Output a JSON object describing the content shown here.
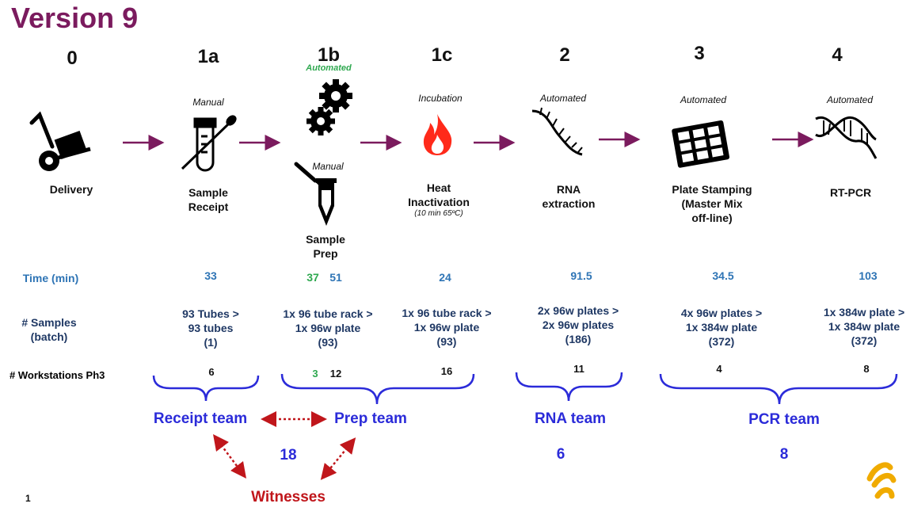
{
  "title": "Version 9",
  "steps": [
    {
      "num": "0",
      "mode": "",
      "stage": "Delivery",
      "icon": "hand-truck-icon"
    },
    {
      "num": "1a",
      "mode": "Manual",
      "stage": "Sample Receipt",
      "icon": "test-tube-swab-icon"
    },
    {
      "num": "1b",
      "mode": "Automated",
      "mode2": "Manual",
      "stage": "Sample Prep",
      "icon": "gears-icon",
      "icon2": "pipette-tube-icon"
    },
    {
      "num": "1c",
      "mode": "Incubation",
      "stage": "Heat Inactivation",
      "note": "(10 min 65ºC)",
      "icon": "flame-icon"
    },
    {
      "num": "2",
      "mode": "Automated",
      "stage": "RNA extraction",
      "icon": "rna-strand-icon"
    },
    {
      "num": "3",
      "mode": "Automated",
      "stage": "Plate Stamping (Master Mix off-line)",
      "icon": "well-plate-icon"
    },
    {
      "num": "4",
      "mode": "Automated",
      "stage": "RT-PCR",
      "icon": "dna-helix-icon"
    }
  ],
  "rows": {
    "time_label": "Time (min)",
    "samples_label": "# Samples (batch)",
    "workstations_label": "# Workstations Ph3"
  },
  "times": [
    "33",
    "37",
    "51",
    "24",
    "91.5",
    "34.5",
    "103"
  ],
  "samples": [
    {
      "l1": "93 Tubes >",
      "l2": "93 tubes",
      "l3": "(1)"
    },
    {
      "l1": "1x 96 tube rack >",
      "l2": "1x 96w plate",
      "l3": "(93)"
    },
    {
      "l1": "1x 96 tube rack >",
      "l2": "1x 96w plate",
      "l3": "(93)"
    },
    {
      "l1": "2x 96w plates >",
      "l2": "2x 96w plates",
      "l3": "(186)"
    },
    {
      "l1": "4x 96w plates >",
      "l2": "1x 384w plate",
      "l3": "(372)"
    },
    {
      "l1": "1x 384w plate >",
      "l2": "1x 384w plate",
      "l3": "(372)"
    }
  ],
  "workstations": [
    "6",
    "3",
    "12",
    "16",
    "11",
    "4",
    "8"
  ],
  "teams": {
    "receipt": "Receipt team",
    "prep": "Prep team",
    "rna": "RNA team",
    "pcr": "PCR team",
    "receipt_prep_count": "18",
    "rna_count": "6",
    "pcr_count": "8",
    "witnesses": "Witnesses"
  },
  "page_number": "1",
  "colors": {
    "title": "#7b1b5e",
    "arrow": "#7b1b5e",
    "team": "#2b2bd9",
    "time": "#2e74b5",
    "witness": "#c0161b",
    "logo": "#f0ab00"
  }
}
